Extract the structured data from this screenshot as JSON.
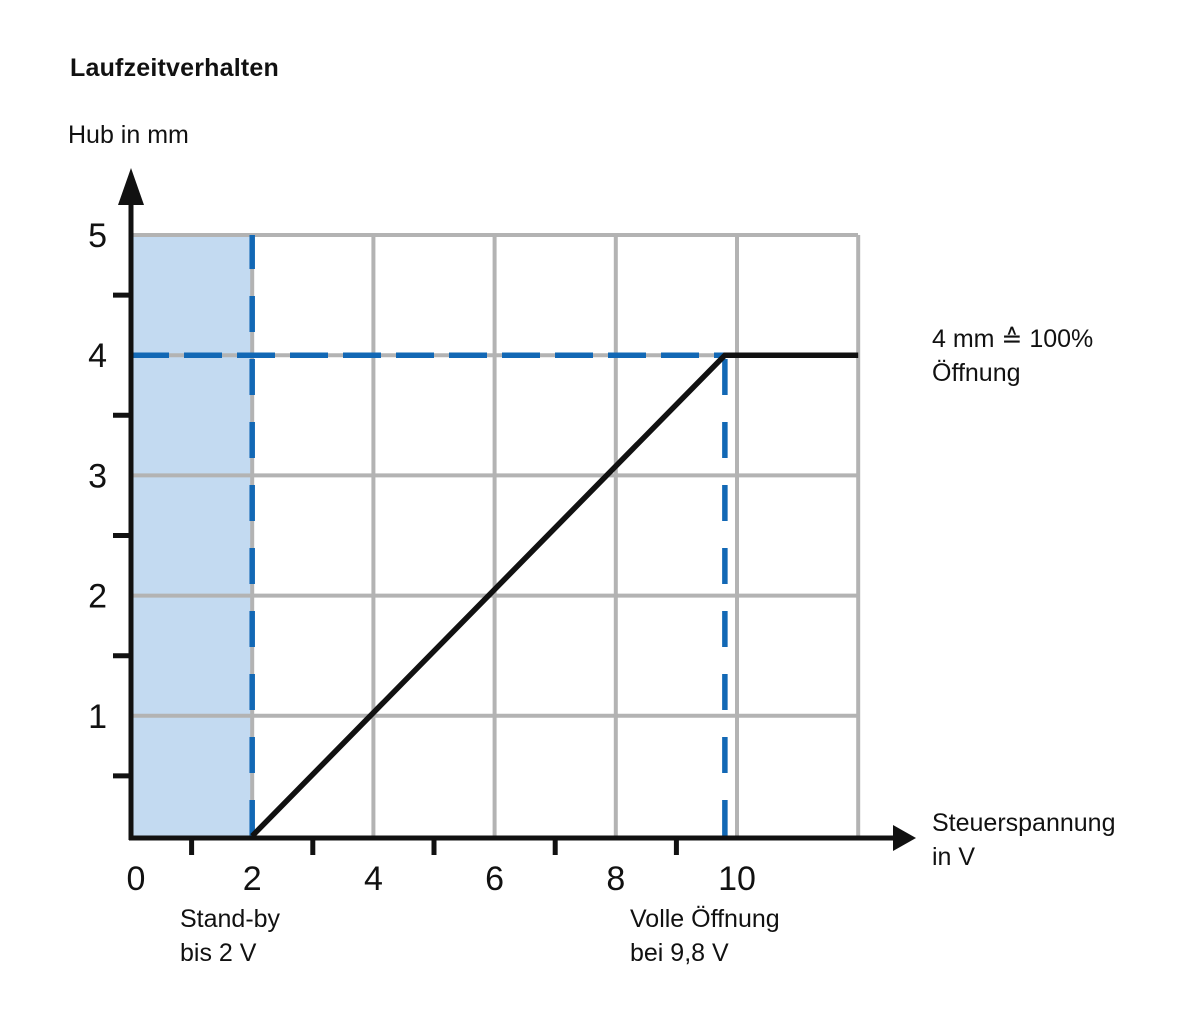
{
  "page": {
    "title": "Laufzeitverhalten"
  },
  "colors": {
    "ink": "#111111",
    "grid_gray": "#b3b3b3",
    "guide_blue": "#1268b5",
    "region_fill": "#c3daf1"
  },
  "chart_data": {
    "type": "line",
    "title": "Laufzeitverhalten",
    "ylabel": "Hub in mm",
    "xlabel_lines": [
      "Steuerspannung",
      "in V"
    ],
    "xlim": [
      0,
      12
    ],
    "ylim": [
      0,
      5
    ],
    "grid": true,
    "x_gridlines": [
      2,
      4,
      6,
      8,
      10,
      12
    ],
    "y_gridlines": [
      1,
      2,
      3,
      4,
      5
    ],
    "x_tick_labels": [
      0,
      2,
      4,
      6,
      8,
      10
    ],
    "x_minor_ticks": [
      1,
      3,
      5,
      7,
      9
    ],
    "y_tick_labels": [
      1,
      2,
      3,
      4,
      5
    ],
    "y_minor_ticks": [
      0.5,
      1.5,
      2.5,
      3.5,
      4.5
    ],
    "series": [
      {
        "name": "Hub",
        "points": [
          [
            2,
            0
          ],
          [
            9.8,
            4
          ],
          [
            12,
            4
          ]
        ]
      }
    ],
    "guides": [
      {
        "orient": "v",
        "x": 2,
        "from": 0,
        "to": 5
      },
      {
        "orient": "h",
        "y": 4,
        "from": 0,
        "to": 9.8
      },
      {
        "orient": "v",
        "x": 9.8,
        "from": 0,
        "to": 4
      }
    ],
    "shaded_region": {
      "x0": 0,
      "x1": 2,
      "y0": 0,
      "y1": 5
    },
    "annotations": {
      "full_opening_note": {
        "lines": [
          "4 mm ≙ 100%",
          "Öffnung"
        ]
      },
      "standby_note": {
        "lines": [
          "Stand-by",
          "bis 2 V"
        ]
      },
      "full_open_note": {
        "lines": [
          "Volle Öffnung",
          "bei 9,8 V"
        ]
      }
    }
  }
}
